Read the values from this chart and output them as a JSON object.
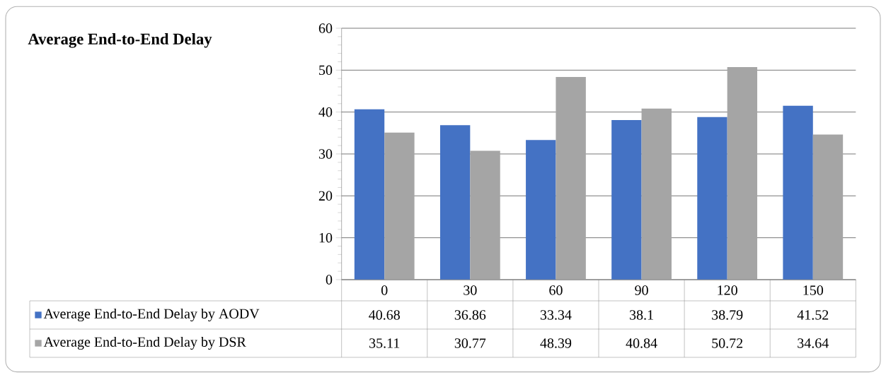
{
  "chart_data": {
    "type": "bar",
    "title": "Average End-to-End Delay",
    "categories": [
      "0",
      "30",
      "60",
      "90",
      "120",
      "150"
    ],
    "series": [
      {
        "name": "Average End-to-End Delay by AODV",
        "color": "#4472c4",
        "values": [
          40.68,
          36.86,
          33.34,
          38.1,
          38.79,
          41.52
        ]
      },
      {
        "name": "Average End-to-End Delay by DSR",
        "color": "#a5a5a5",
        "values": [
          35.11,
          30.77,
          48.39,
          40.84,
          50.72,
          34.64
        ]
      }
    ],
    "ylim": [
      0,
      60
    ],
    "yticks": [
      0,
      10,
      20,
      30,
      40,
      50,
      60
    ],
    "grid": "y",
    "legend": "bottom",
    "data_labels": true
  }
}
